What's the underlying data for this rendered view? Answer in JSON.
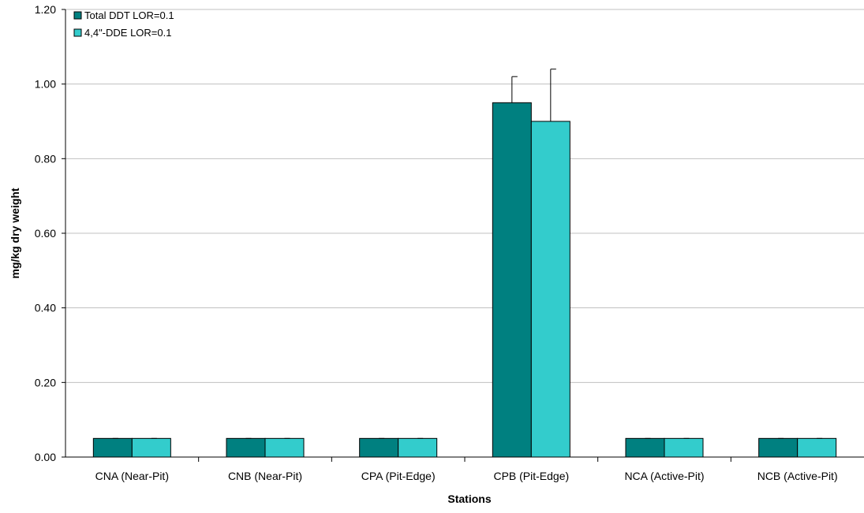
{
  "chart_data": {
    "type": "bar",
    "title": "",
    "xlabel": "Stations",
    "ylabel": "mg/kg dry weight",
    "ylim": [
      0,
      1.2
    ],
    "yticks": [
      "0.00",
      "0.20",
      "0.40",
      "0.60",
      "0.80",
      "1.00",
      "1.20"
    ],
    "grid": true,
    "legend_position": "top-left",
    "categories": [
      "CNA (Near-Pit)",
      "CNB (Near-Pit)",
      "CPA (Pit-Edge)",
      "CPB (Pit-Edge)",
      "NCA (Active-Pit)",
      "NCB (Active-Pit)"
    ],
    "series": [
      {
        "name": "Total DDT LOR=0.1",
        "color": "#008080",
        "values": [
          0.05,
          0.05,
          0.05,
          0.95,
          0.05,
          0.05
        ],
        "error": [
          0,
          0,
          0,
          0.07,
          0,
          0
        ]
      },
      {
        "name": "4,4\"-DDE LOR=0.1",
        "color": "#33CCCC",
        "values": [
          0.05,
          0.05,
          0.05,
          0.9,
          0.05,
          0.05
        ],
        "error": [
          0,
          0,
          0,
          0.14,
          0,
          0
        ]
      }
    ]
  }
}
